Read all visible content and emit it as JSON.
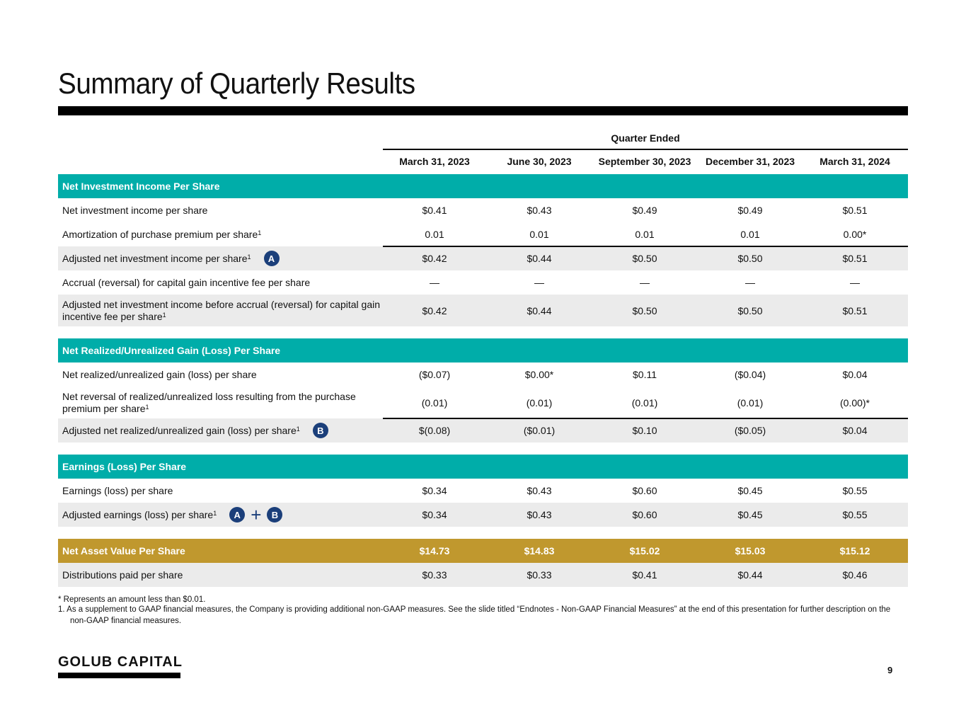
{
  "title": "Summary of Quarterly Results",
  "header": {
    "group": "Quarter Ended",
    "columns": [
      "March 31, 2023",
      "June 30, 2023",
      "September 30, 2023",
      "December 31, 2023",
      "March 31, 2024"
    ]
  },
  "colors": {
    "teal": "#00ada9",
    "gold": "#c0982e",
    "badge": "#1b3f7a",
    "row_gray": "#ebebeb"
  },
  "rows": [
    {
      "type": "teal",
      "label": "Net Investment Income Per Share",
      "values": []
    },
    {
      "type": "white",
      "label": "Net investment income per share",
      "values": [
        "$0.41",
        "$0.43",
        "$0.49",
        "$0.49",
        "$0.51"
      ]
    },
    {
      "type": "white",
      "label": "Amortization of purchase premium per share",
      "sup": "1",
      "values": [
        "0.01",
        "0.01",
        "0.01",
        "0.01",
        "0.00*"
      ]
    },
    {
      "type": "gray",
      "label": "Adjusted net investment income per share",
      "sup": "1",
      "badges": [
        "A"
      ],
      "values": [
        "$0.42",
        "$0.44",
        "$0.50",
        "$0.50",
        "$0.51"
      ]
    },
    {
      "type": "white",
      "label": "Accrual (reversal) for capital gain incentive fee per share",
      "values": [
        "—",
        "—",
        "—",
        "—",
        "—"
      ]
    },
    {
      "type": "gray",
      "label": "Adjusted net investment income before accrual (reversal) for capital gain incentive fee per share",
      "sup": "1",
      "values": [
        "$0.42",
        "$0.44",
        "$0.50",
        "$0.50",
        "$0.51"
      ]
    },
    {
      "type": "teal",
      "label": "Net Realized/Unrealized Gain (Loss) Per Share",
      "values": []
    },
    {
      "type": "white",
      "label": "Net realized/unrealized gain (loss) per share",
      "values": [
        "($0.07)",
        "$0.00*",
        "$0.11",
        "($0.04)",
        "$0.04"
      ]
    },
    {
      "type": "white",
      "label": "Net reversal of realized/unrealized loss resulting from the purchase premium per share",
      "sup": "1",
      "values": [
        "(0.01)",
        "(0.01)",
        "(0.01)",
        "(0.01)",
        "(0.00)*"
      ]
    },
    {
      "type": "gray",
      "label": "Adjusted net realized/unrealized gain (loss) per share",
      "sup": "1",
      "badges": [
        "B"
      ],
      "values": [
        "$(0.08)",
        "($0.01)",
        "$0.10",
        "($0.05)",
        "$0.04"
      ]
    },
    {
      "type": "teal",
      "label": "Earnings (Loss) Per Share",
      "values": []
    },
    {
      "type": "white",
      "label": "Earnings (loss) per share",
      "values": [
        "$0.34",
        "$0.43",
        "$0.60",
        "$0.45",
        "$0.55"
      ]
    },
    {
      "type": "gray",
      "label": "Adjusted earnings (loss) per share",
      "sup": "1",
      "badges": [
        "A",
        "B"
      ],
      "values": [
        "$0.34",
        "$0.43",
        "$0.60",
        "$0.45",
        "$0.55"
      ]
    },
    {
      "type": "gold",
      "label": "Net Asset Value Per Share",
      "values": [
        "$14.73",
        "$14.83",
        "$15.02",
        "$15.03",
        "$15.12"
      ]
    },
    {
      "type": "gray",
      "label": "Distributions paid per share",
      "values": [
        "$0.33",
        "$0.33",
        "$0.41",
        "$0.44",
        "$0.46"
      ]
    }
  ],
  "footnotes": [
    "*    Represents an amount less than $0.01.",
    "1.  As a supplement to GAAP financial measures, the Company is providing additional non-GAAP measures. See the slide titled “Endnotes - Non-GAAP Financial Measures” at the end of this presentation for further description on the non-GAAP financial measures."
  ],
  "logo": "GOLUB CAPITAL",
  "page_number": "9"
}
